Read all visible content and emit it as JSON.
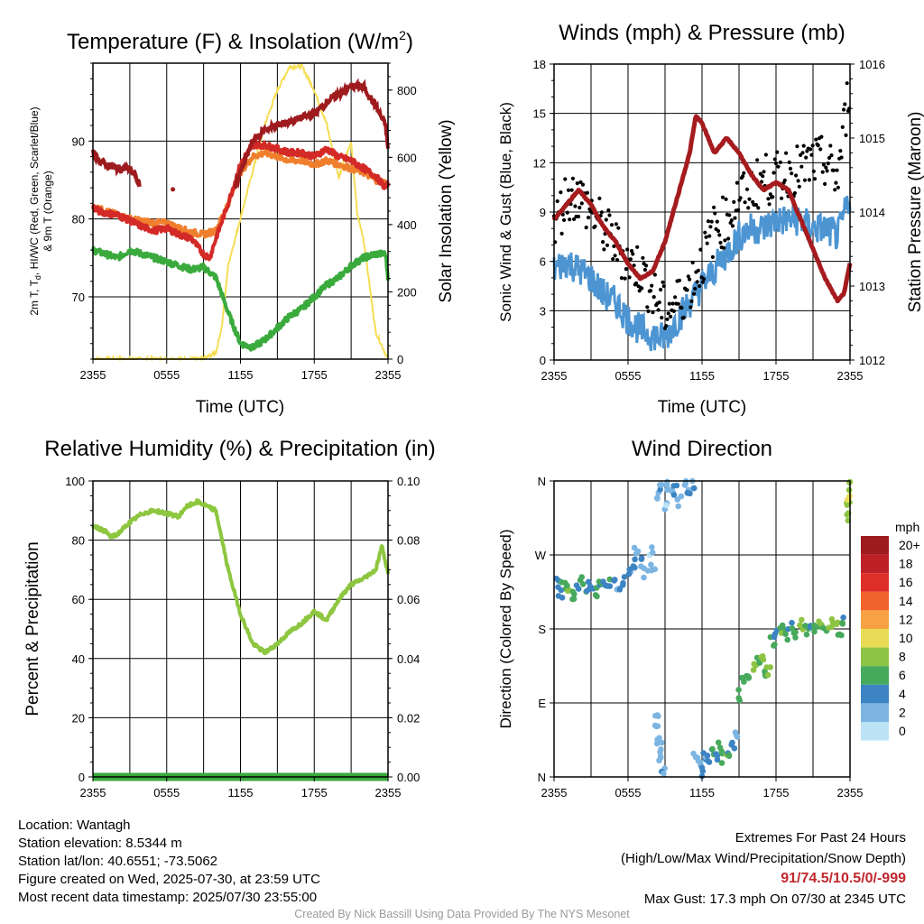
{
  "panels": [
    {
      "id": "temp",
      "title_parts": [
        "Temperature (F) & Insolation (W/m",
        "2",
        ")"
      ],
      "x_label": "Time (UTC)",
      "y_label_lines": [
        "2m T, T",
        "d",
        ", HI/WC (Red, Green, Scarlet/Blue)",
        "& 9m T (Orange)"
      ],
      "y2_label": "Solar Insolation (Yellow)",
      "x_ticks": [
        "2355",
        "0555",
        "1155",
        "1755",
        "2355"
      ],
      "y_ticks": [
        "70",
        "80",
        "90"
      ],
      "y2_ticks": [
        "0",
        "200",
        "400",
        "600",
        "800"
      ]
    },
    {
      "id": "wind",
      "title": "Winds (mph) & Pressure (mb)",
      "x_label": "Time (UTC)",
      "y_label": "Sonic Wind & Gust (Blue, Black)",
      "y2_label": "Station Pressure (Maroon)",
      "x_ticks": [
        "2355",
        "0555",
        "1155",
        "1755",
        "2355"
      ],
      "y_ticks": [
        "0",
        "3",
        "6",
        "9",
        "12",
        "15",
        "18"
      ],
      "y2_ticks": [
        "1012",
        "1013",
        "1014",
        "1015",
        "1016"
      ]
    },
    {
      "id": "rh",
      "title": "Relative Humidity (%) & Precipitation (in)",
      "y_label": "Percent & Precipitation",
      "x_ticks": [
        "2355",
        "0555",
        "1155",
        "1755",
        "2355"
      ],
      "y_ticks": [
        "0",
        "20",
        "40",
        "60",
        "80",
        "100"
      ],
      "y2_ticks": [
        "0.00",
        "0.02",
        "0.04",
        "0.06",
        "0.08",
        "0.10"
      ]
    },
    {
      "id": "wdir",
      "title": "Wind Direction",
      "y_label": "Direction (Colored By Speed)",
      "x_ticks": [
        "2355",
        "0555",
        "1155",
        "1755",
        "2355"
      ],
      "y_ticks": [
        "N",
        "E",
        "S",
        "W",
        "N"
      ]
    }
  ],
  "legend": {
    "title": "mph",
    "labels": [
      "20+",
      "18",
      "16",
      "14",
      "12",
      "10",
      "8",
      "6",
      "4",
      "2",
      "0"
    ],
    "colors": [
      "#9e1b1e",
      "#be2025",
      "#dd2e27",
      "#f0612b",
      "#f7a142",
      "#e8dc57",
      "#8ec444",
      "#47a95c",
      "#3d84c3",
      "#7cb5e2",
      "#bde3f6"
    ]
  },
  "colors": {
    "temperature": "#d42a27",
    "dewpoint": "#3aaa3d",
    "heat_index": "#9e1b1e",
    "temp_9m": "#f07f2d",
    "insolation": "#f5de55",
    "wind": "#4d95d2",
    "gust": "#000000",
    "pressure": "#a51b1e",
    "rh": "#8dc63f",
    "precip": "#3aaa3d",
    "extremes": "#c0272d"
  },
  "info": {
    "location": "Location: Wantagh",
    "elevation": "Station elevation: 8.5344 m",
    "latlon": "Station lat/lon: 40.6551; -73.5062",
    "created": "Figure created on Wed, 2025-07-30, at 23:59 UTC",
    "recent": "Most recent data timestamp: 2025/07/30 23:55:00"
  },
  "extremes": {
    "title": "Extremes For Past 24 Hours",
    "subtitle": "(High/Low/Max Wind/Precipitation/Snow Depth)",
    "values": "91/74.5/10.5/0/-999",
    "max_gust": "Max Gust: 17.3 mph On 07/30 at 2345 UTC"
  },
  "credit": "Created By Nick Bassill Using Data Provided By The NYS Mesonet",
  "chart_data": [
    {
      "type": "line",
      "title": "Temperature (F) & Insolation (W/m2)",
      "xlabel": "Time (UTC)",
      "ylabel": "2m T, Td, HI/WC (Red, Green, Scarlet/Blue) & 9m T (Orange)",
      "y2label": "Solar Insolation (Yellow)",
      "ylim": [
        62,
        100
      ],
      "y2lim": [
        0,
        880
      ],
      "x_unit": "hours since 2355 UTC",
      "x_tick_labels": [
        "2355",
        "0555",
        "1155",
        "1755",
        "2355"
      ],
      "series": [
        {
          "name": "2m T",
          "axis": "left",
          "x": [
            0,
            0.5,
            1,
            2,
            3,
            4,
            5,
            6,
            7,
            8,
            9,
            9.5,
            10,
            11,
            12,
            13,
            14,
            15,
            16,
            17,
            18,
            19,
            20,
            21,
            22,
            23,
            23.8,
            24
          ],
          "y": [
            81.5,
            81,
            80.8,
            80.5,
            79.8,
            79,
            78.5,
            78.8,
            78,
            77.5,
            75.5,
            75,
            77.5,
            82,
            87,
            89.5,
            89.5,
            89,
            88.5,
            88.5,
            88,
            89,
            88,
            87.5,
            86.5,
            85.5,
            84,
            84.5
          ]
        },
        {
          "name": "9m T",
          "axis": "left",
          "x": [
            0,
            0.5,
            1,
            2,
            3,
            4,
            5,
            6,
            7,
            8,
            9,
            10,
            11,
            12,
            13,
            14,
            15,
            16,
            17,
            18,
            19,
            20,
            21,
            22,
            23,
            24
          ],
          "y": [
            81.5,
            81.3,
            81,
            80.5,
            80,
            79.7,
            79.5,
            79.5,
            78.8,
            78.3,
            78,
            78.5,
            82,
            86,
            88,
            88.5,
            88,
            87.5,
            87.5,
            87,
            87.5,
            87,
            86.5,
            86,
            85,
            84.5
          ]
        },
        {
          "name": "Td",
          "axis": "left",
          "x": [
            0,
            1,
            2,
            3,
            4,
            5,
            6,
            7,
            8,
            9,
            10,
            11,
            12,
            13,
            14,
            15,
            16,
            17,
            18,
            19,
            20,
            21,
            22,
            23,
            23.8,
            24
          ],
          "y": [
            76,
            75.5,
            75,
            76,
            75.5,
            75,
            74.5,
            74,
            73.5,
            73.8,
            72.5,
            68,
            64,
            63.5,
            64.5,
            66,
            67.5,
            68.5,
            70,
            71.5,
            72.5,
            74,
            75,
            75.5,
            75.5,
            72.5
          ]
        },
        {
          "name": "HI",
          "axis": "left",
          "x": [
            0,
            0.5,
            1,
            2,
            3,
            3.8,
            11.5,
            12,
            13,
            14,
            15,
            16,
            17,
            18,
            19,
            20,
            21,
            22,
            23,
            23.8,
            24
          ],
          "y": [
            88.5,
            87.5,
            87,
            86.5,
            86.5,
            84.5,
            84,
            86,
            90,
            91.5,
            92,
            92.5,
            93,
            93.5,
            95,
            96,
            97,
            97,
            94.5,
            92,
            89
          ]
        },
        {
          "name": "Solar Insolation",
          "axis": "right",
          "x": [
            0,
            9,
            10,
            10.5,
            11,
            12,
            13,
            14,
            15,
            16,
            17,
            18,
            19,
            20,
            20.5,
            21,
            21.5,
            22,
            22.5,
            23,
            24
          ],
          "y": [
            0,
            0,
            20,
            100,
            280,
            420,
            560,
            700,
            800,
            870,
            870,
            800,
            700,
            540,
            600,
            640,
            430,
            360,
            220,
            80,
            0
          ]
        }
      ]
    },
    {
      "type": "line",
      "title": "Winds (mph) & Pressure (mb)",
      "xlabel": "Time (UTC)",
      "ylabel": "Sonic Wind & Gust (Blue, Black)",
      "y2label": "Station Pressure (Maroon)",
      "ylim": [
        0,
        18
      ],
      "y2lim": [
        1012,
        1016
      ],
      "x_unit": "hours since 2355 UTC",
      "x_tick_labels": [
        "2355",
        "0555",
        "1155",
        "1755",
        "2355"
      ],
      "series": [
        {
          "name": "Sonic Wind",
          "axis": "left",
          "x": [
            0,
            1,
            2,
            3,
            4,
            5,
            6,
            7,
            8,
            9,
            10,
            11,
            12,
            13,
            14,
            15,
            16,
            17,
            18,
            19,
            20,
            21,
            22,
            23,
            24
          ],
          "y": [
            5.5,
            6,
            5.5,
            5,
            4,
            3.5,
            2.5,
            1.8,
            1.5,
            1.3,
            2.5,
            3.5,
            4.5,
            5.5,
            6.5,
            7.5,
            8,
            8,
            8.5,
            8.5,
            8.5,
            8,
            8,
            7.5,
            10
          ]
        },
        {
          "name": "Gust",
          "axis": "left",
          "x": [
            0,
            1,
            2,
            3,
            4,
            5,
            6,
            7,
            8,
            9,
            10,
            11,
            12,
            13,
            14,
            15,
            16,
            17,
            18,
            19,
            20,
            21,
            22,
            23,
            24
          ],
          "y": [
            8,
            10,
            10,
            9,
            8,
            7,
            6,
            5.5,
            4,
            3,
            3.5,
            4.5,
            6,
            8,
            8.5,
            10,
            10.5,
            11,
            11,
            11.5,
            11.5,
            12,
            12,
            11,
            17
          ]
        },
        {
          "name": "Station Pressure",
          "axis": "right",
          "x": [
            0,
            1,
            2,
            3,
            4,
            5,
            6,
            7,
            8,
            9,
            10,
            11,
            11.5,
            12,
            13,
            14,
            15,
            16,
            17,
            18,
            19,
            20,
            21,
            22,
            23,
            23.5,
            24
          ],
          "y": [
            1013.9,
            1014.1,
            1014.3,
            1014.1,
            1013.8,
            1013.6,
            1013.3,
            1013.1,
            1013.2,
            1013.6,
            1014.2,
            1014.8,
            1015.3,
            1015.2,
            1014.8,
            1015,
            1014.8,
            1014.5,
            1014.3,
            1014.4,
            1014.3,
            1013.9,
            1013.5,
            1013.1,
            1012.8,
            1012.9,
            1013.3
          ]
        }
      ]
    },
    {
      "type": "line",
      "title": "Relative Humidity (%) & Precipitation (in)",
      "ylabel": "Percent & Precipitation",
      "ylim": [
        0,
        100
      ],
      "y2lim": [
        0,
        0.1
      ],
      "x_unit": "hours since 2355 UTC",
      "x_tick_labels": [
        "2355",
        "0555",
        "1155",
        "1755",
        "2355"
      ],
      "series": [
        {
          "name": "RH",
          "axis": "left",
          "x": [
            0,
            0.5,
            1,
            1.5,
            2,
            3,
            4,
            5,
            6,
            7,
            7.5,
            8,
            8.5,
            9,
            10,
            11,
            12,
            13,
            14,
            15,
            16,
            17,
            18,
            19,
            20,
            21,
            22,
            23,
            23.5,
            24
          ],
          "y": [
            85,
            84,
            83,
            81,
            82,
            86,
            89,
            90,
            89,
            88,
            91,
            92,
            93,
            92,
            90,
            70,
            55,
            45,
            42,
            45,
            49,
            52,
            56,
            53,
            60,
            65,
            67,
            70,
            78,
            69
          ]
        },
        {
          "name": "Precipitation",
          "axis": "right",
          "x": [
            0,
            24
          ],
          "y": [
            0,
            0
          ]
        }
      ]
    },
    {
      "type": "scatter",
      "title": "Wind Direction",
      "ylabel": "Direction (Colored By Speed)",
      "y_tick_labels": [
        "N",
        "E",
        "S",
        "W",
        "N"
      ],
      "ylim": [
        0,
        360
      ],
      "x_unit": "hours since 2355 UTC",
      "x_tick_labels": [
        "2355",
        "0555",
        "1155",
        "1755",
        "2355"
      ],
      "color_scale": "mph",
      "points": [
        [
          0.2,
          237,
          4
        ],
        [
          0.5,
          225,
          5
        ],
        [
          0.8,
          230,
          6
        ],
        [
          1.1,
          232,
          7
        ],
        [
          1.5,
          222,
          6
        ],
        [
          1.8,
          228,
          5
        ],
        [
          2.2,
          240,
          6
        ],
        [
          2.6,
          232,
          5
        ],
        [
          3,
          235,
          4
        ],
        [
          3.3,
          225,
          6
        ],
        [
          3.7,
          232,
          5
        ],
        [
          4.1,
          236,
          4
        ],
        [
          4.5,
          238,
          5
        ],
        [
          4.9,
          242,
          4
        ],
        [
          5.3,
          230,
          3
        ],
        [
          5.7,
          238,
          4
        ],
        [
          6.1,
          246,
          3
        ],
        [
          6.4,
          258,
          4
        ],
        [
          6.7,
          272,
          2
        ],
        [
          7.1,
          262,
          3
        ],
        [
          7.4,
          248,
          2
        ],
        [
          7.8,
          275,
          1
        ],
        [
          8.0,
          256,
          2
        ],
        [
          8.5,
          340,
          2
        ],
        [
          8.7,
          355,
          3
        ],
        [
          9,
          332,
          1
        ],
        [
          9.3,
          352,
          2
        ],
        [
          9.6,
          345,
          2
        ],
        [
          9.9,
          350,
          3
        ],
        [
          10.2,
          335,
          2
        ],
        [
          10.5,
          355,
          2
        ],
        [
          10.9,
          348,
          3
        ],
        [
          11.3,
          356,
          3
        ],
        [
          8.3,
          75,
          2
        ],
        [
          8.4,
          60,
          3
        ],
        [
          8.5,
          45,
          2
        ],
        [
          8.6,
          35,
          3
        ],
        [
          8.7,
          20,
          2
        ],
        [
          8.8,
          10,
          3
        ],
        [
          11.5,
          25,
          2
        ],
        [
          11.8,
          15,
          3
        ],
        [
          12,
          5,
          4
        ],
        [
          12.3,
          28,
          3
        ],
        [
          12.6,
          20,
          4
        ],
        [
          12.9,
          32,
          5
        ],
        [
          13.2,
          25,
          4
        ],
        [
          13.5,
          35,
          6
        ],
        [
          13.8,
          22,
          7
        ],
        [
          14.1,
          30,
          5
        ],
        [
          14.5,
          40,
          4
        ],
        [
          14.8,
          55,
          3
        ],
        [
          15.0,
          100,
          5
        ],
        [
          15.3,
          115,
          6
        ],
        [
          15.6,
          125,
          5
        ],
        [
          15.9,
          120,
          6
        ],
        [
          16.2,
          135,
          8
        ],
        [
          16.5,
          145,
          7
        ],
        [
          16.8,
          140,
          8
        ],
        [
          17.1,
          125,
          6
        ],
        [
          17.4,
          130,
          8
        ],
        [
          17.7,
          165,
          6
        ],
        [
          18.0,
          175,
          5
        ],
        [
          18.4,
          180,
          7
        ],
        [
          18.8,
          172,
          6
        ],
        [
          19.2,
          182,
          5
        ],
        [
          19.6,
          176,
          6
        ],
        [
          20.0,
          185,
          7
        ],
        [
          20.4,
          178,
          6
        ],
        [
          20.8,
          184,
          5
        ],
        [
          21.2,
          180,
          6
        ],
        [
          21.6,
          186,
          7
        ],
        [
          22.0,
          181,
          6
        ],
        [
          22.4,
          185,
          8
        ],
        [
          22.8,
          183,
          7
        ],
        [
          23.2,
          178,
          6
        ],
        [
          23.5,
          190,
          5
        ],
        [
          23.7,
          315,
          8
        ],
        [
          23.8,
          330,
          8
        ],
        [
          23.9,
          340,
          10
        ],
        [
          24.0,
          355,
          8
        ]
      ]
    }
  ]
}
